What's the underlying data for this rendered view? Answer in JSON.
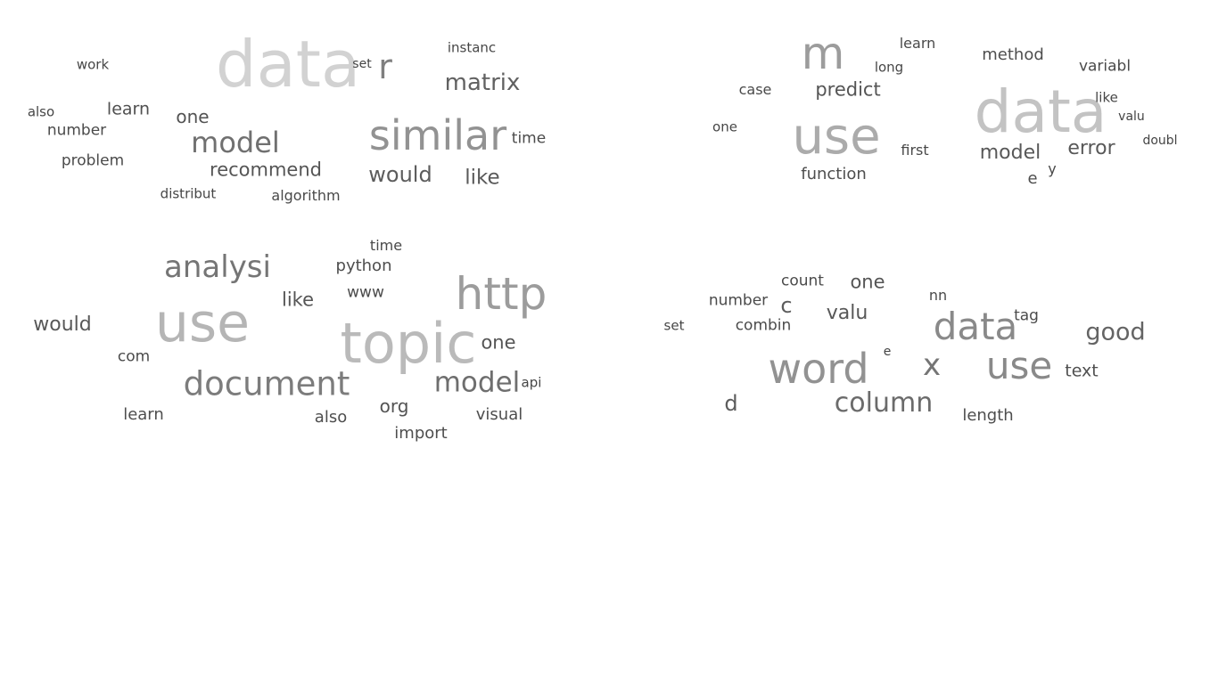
{
  "chart_data": [
    {
      "type": "wordcloud",
      "words": [
        {
          "text": "data",
          "weight": 72
        },
        {
          "text": "similar",
          "weight": 46
        },
        {
          "text": "r",
          "weight": 38
        },
        {
          "text": "model",
          "weight": 32
        },
        {
          "text": "matrix",
          "weight": 26
        },
        {
          "text": "recommend",
          "weight": 21
        },
        {
          "text": "would",
          "weight": 24
        },
        {
          "text": "like",
          "weight": 23
        },
        {
          "text": "one",
          "weight": 20
        },
        {
          "text": "learn",
          "weight": 19
        },
        {
          "text": "number",
          "weight": 17
        },
        {
          "text": "problem",
          "weight": 17
        },
        {
          "text": "time",
          "weight": 17
        },
        {
          "text": "algorithm",
          "weight": 16
        },
        {
          "text": "distribut",
          "weight": 15
        },
        {
          "text": "instanc",
          "weight": 15
        },
        {
          "text": "work",
          "weight": 15
        },
        {
          "text": "also",
          "weight": 15
        },
        {
          "text": "set",
          "weight": 14
        }
      ]
    },
    {
      "type": "wordcloud",
      "words": [
        {
          "text": "data",
          "weight": 66
        },
        {
          "text": "use",
          "weight": 56
        },
        {
          "text": "m",
          "weight": 50
        },
        {
          "text": "predict",
          "weight": 21
        },
        {
          "text": "model",
          "weight": 22
        },
        {
          "text": "error",
          "weight": 22
        },
        {
          "text": "function",
          "weight": 18
        },
        {
          "text": "method",
          "weight": 18
        },
        {
          "text": "variabl",
          "weight": 17
        },
        {
          "text": "first",
          "weight": 16
        },
        {
          "text": "case",
          "weight": 16
        },
        {
          "text": "e",
          "weight": 18
        },
        {
          "text": "learn",
          "weight": 16
        },
        {
          "text": "long",
          "weight": 15
        },
        {
          "text": "like",
          "weight": 15
        },
        {
          "text": "valu",
          "weight": 14
        },
        {
          "text": "one",
          "weight": 15
        },
        {
          "text": "doubl",
          "weight": 14
        },
        {
          "text": "y",
          "weight": 16
        }
      ]
    },
    {
      "type": "wordcloud",
      "words": [
        {
          "text": "topic",
          "weight": 62
        },
        {
          "text": "use",
          "weight": 60
        },
        {
          "text": "http",
          "weight": 50
        },
        {
          "text": "document",
          "weight": 37
        },
        {
          "text": "analysi",
          "weight": 34
        },
        {
          "text": "model",
          "weight": 31
        },
        {
          "text": "would",
          "weight": 22
        },
        {
          "text": "like",
          "weight": 21
        },
        {
          "text": "one",
          "weight": 21
        },
        {
          "text": "python",
          "weight": 18
        },
        {
          "text": "org",
          "weight": 20
        },
        {
          "text": "also",
          "weight": 18
        },
        {
          "text": "learn",
          "weight": 18
        },
        {
          "text": "visual",
          "weight": 18
        },
        {
          "text": "import",
          "weight": 18
        },
        {
          "text": "com",
          "weight": 17
        },
        {
          "text": "www",
          "weight": 17
        },
        {
          "text": "time",
          "weight": 16
        },
        {
          "text": "api",
          "weight": 15
        }
      ]
    },
    {
      "type": "wordcloud",
      "words": [
        {
          "text": "word",
          "weight": 46
        },
        {
          "text": "data",
          "weight": 42
        },
        {
          "text": "use",
          "weight": 42
        },
        {
          "text": "x",
          "weight": 34
        },
        {
          "text": "column",
          "weight": 30
        },
        {
          "text": "good",
          "weight": 27
        },
        {
          "text": "c",
          "weight": 24
        },
        {
          "text": "valu",
          "weight": 22
        },
        {
          "text": "one",
          "weight": 21
        },
        {
          "text": "d",
          "weight": 24
        },
        {
          "text": "text",
          "weight": 19
        },
        {
          "text": "length",
          "weight": 18
        },
        {
          "text": "combin",
          "weight": 17
        },
        {
          "text": "count",
          "weight": 17
        },
        {
          "text": "number",
          "weight": 17
        },
        {
          "text": "tag",
          "weight": 17
        },
        {
          "text": "nn",
          "weight": 16
        },
        {
          "text": "set",
          "weight": 15
        },
        {
          "text": "e",
          "weight": 14
        }
      ]
    }
  ]
}
